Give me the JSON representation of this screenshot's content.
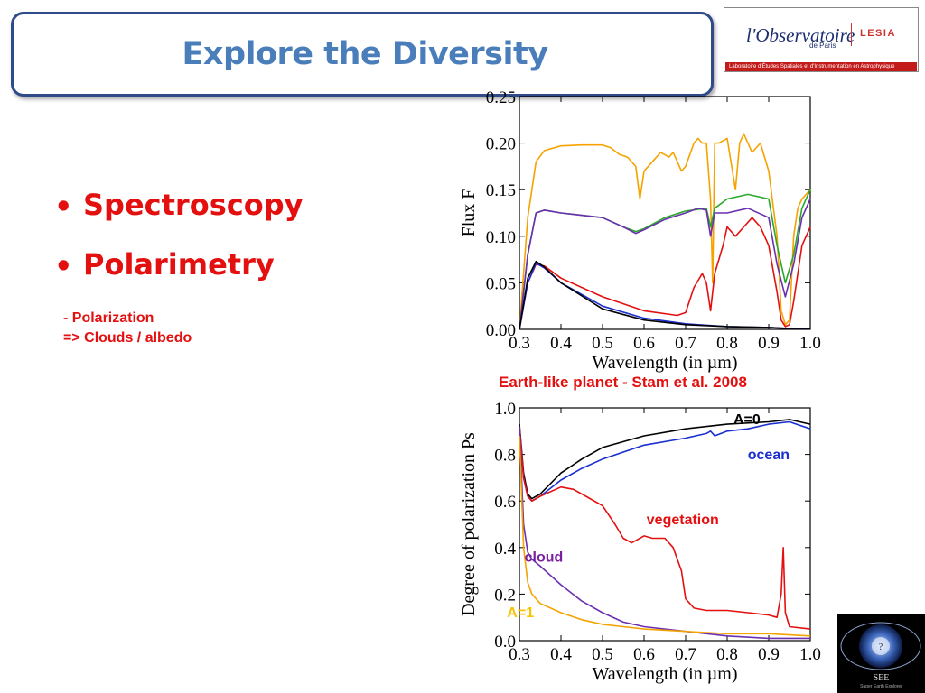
{
  "slide": {
    "title": "Explore the Diversity",
    "bullets": [
      "Spectroscopy",
      "Polarimetry"
    ],
    "note_lines": [
      "- Polarization",
      "=> Clouds / albedo"
    ],
    "caption": "Earth-like planet - Stam et al. 2008"
  },
  "logo": {
    "name_part1": "l'Observatoire",
    "name_part2": "de Paris",
    "lab": "LESIA",
    "band_text": "Laboratoire d'Études Spatiales et d'Instrumentation en Astrophysique"
  },
  "see_logo": {
    "text": "SEE",
    "subtext": "Super Earth Explorer",
    "mark": "?"
  },
  "colors": {
    "accent": "#4a7ebb",
    "title_border": "#2f4b8a",
    "red": "#e41010"
  },
  "chart_data": [
    {
      "type": "line",
      "xlabel": "Wavelength (in µm)",
      "ylabel": "Flux  F",
      "xlim": [
        0.3,
        1.0
      ],
      "ylim": [
        0.0,
        0.25
      ],
      "xticks": [
        "0.3",
        "0.4",
        "0.5",
        "0.6",
        "0.7",
        "0.8",
        "0.9",
        "1.0"
      ],
      "yticks": [
        "0.00",
        "0.05",
        "0.10",
        "0.15",
        "0.20",
        "0.25"
      ],
      "series": [
        {
          "color": "#f5a300",
          "x": [
            0.3,
            0.32,
            0.34,
            0.36,
            0.4,
            0.45,
            0.5,
            0.52,
            0.54,
            0.56,
            0.58,
            0.59,
            0.6,
            0.62,
            0.64,
            0.66,
            0.67,
            0.68,
            0.69,
            0.7,
            0.72,
            0.73,
            0.74,
            0.75,
            0.76,
            0.765,
            0.77,
            0.78,
            0.8,
            0.82,
            0.83,
            0.84,
            0.86,
            0.88,
            0.9,
            0.92,
            0.93,
            0.94,
            0.95,
            0.96,
            0.97,
            0.98,
            1.0
          ],
          "y": [
            0.0,
            0.12,
            0.18,
            0.192,
            0.197,
            0.198,
            0.198,
            0.195,
            0.188,
            0.185,
            0.175,
            0.14,
            0.17,
            0.18,
            0.19,
            0.185,
            0.19,
            0.18,
            0.17,
            0.175,
            0.2,
            0.205,
            0.2,
            0.2,
            0.14,
            0.05,
            0.2,
            0.2,
            0.205,
            0.15,
            0.2,
            0.21,
            0.19,
            0.2,
            0.17,
            0.1,
            0.02,
            0.005,
            0.01,
            0.1,
            0.13,
            0.14,
            0.15
          ]
        },
        {
          "color": "#2aa82a",
          "x": [
            0.3,
            0.32,
            0.34,
            0.36,
            0.4,
            0.5,
            0.55,
            0.58,
            0.6,
            0.65,
            0.7,
            0.75,
            0.76,
            0.77,
            0.8,
            0.85,
            0.9,
            0.92,
            0.94,
            0.96,
            0.98,
            1.0
          ],
          "y": [
            0.0,
            0.08,
            0.125,
            0.128,
            0.125,
            0.12,
            0.11,
            0.105,
            0.108,
            0.12,
            0.127,
            0.13,
            0.11,
            0.13,
            0.14,
            0.145,
            0.14,
            0.09,
            0.05,
            0.08,
            0.13,
            0.15
          ]
        },
        {
          "color": "#6a30b0",
          "x": [
            0.3,
            0.32,
            0.34,
            0.36,
            0.4,
            0.5,
            0.55,
            0.58,
            0.6,
            0.65,
            0.7,
            0.73,
            0.75,
            0.76,
            0.77,
            0.8,
            0.85,
            0.9,
            0.92,
            0.94,
            0.96,
            0.98,
            1.0
          ],
          "y": [
            0.0,
            0.08,
            0.125,
            0.128,
            0.125,
            0.12,
            0.11,
            0.103,
            0.107,
            0.118,
            0.125,
            0.13,
            0.128,
            0.1,
            0.125,
            0.125,
            0.13,
            0.12,
            0.07,
            0.035,
            0.07,
            0.12,
            0.14
          ]
        },
        {
          "color": "#e41010",
          "x": [
            0.3,
            0.32,
            0.34,
            0.36,
            0.4,
            0.5,
            0.6,
            0.68,
            0.7,
            0.72,
            0.74,
            0.75,
            0.76,
            0.77,
            0.79,
            0.8,
            0.82,
            0.84,
            0.86,
            0.88,
            0.9,
            0.92,
            0.93,
            0.94,
            0.95,
            0.96,
            0.98,
            1.0
          ],
          "y": [
            0.0,
            0.05,
            0.07,
            0.068,
            0.055,
            0.035,
            0.02,
            0.015,
            0.018,
            0.045,
            0.06,
            0.05,
            0.02,
            0.06,
            0.09,
            0.11,
            0.1,
            0.11,
            0.12,
            0.11,
            0.09,
            0.04,
            0.01,
            0.003,
            0.005,
            0.03,
            0.09,
            0.11
          ]
        },
        {
          "color": "#1a2fd0",
          "x": [
            0.3,
            0.32,
            0.34,
            0.36,
            0.4,
            0.5,
            0.6,
            0.7,
            0.8,
            0.9,
            0.95,
            1.0
          ],
          "y": [
            0.0,
            0.05,
            0.071,
            0.066,
            0.05,
            0.025,
            0.012,
            0.006,
            0.003,
            0.002,
            0.001,
            0.001
          ]
        },
        {
          "color": "#000000",
          "x": [
            0.3,
            0.32,
            0.34,
            0.36,
            0.4,
            0.5,
            0.6,
            0.7,
            0.8,
            0.9,
            0.95,
            1.0
          ],
          "y": [
            0.0,
            0.055,
            0.073,
            0.067,
            0.05,
            0.022,
            0.01,
            0.005,
            0.003,
            0.002,
            0.001,
            0.001
          ]
        }
      ]
    },
    {
      "type": "line",
      "xlabel": "Wavelength (in µm)",
      "ylabel": "Degree of polarization  Ps",
      "xlim": [
        0.3,
        1.0
      ],
      "ylim": [
        0.0,
        1.0
      ],
      "xticks": [
        "0.3",
        "0.4",
        "0.5",
        "0.6",
        "0.7",
        "0.8",
        "0.9",
        "1.0"
      ],
      "yticks": [
        "0.0",
        "0.2",
        "0.4",
        "0.6",
        "0.8",
        "1.0"
      ],
      "annotations": [
        {
          "text": "A=0",
          "color": "#000000",
          "x": 0.88,
          "y": 0.93
        },
        {
          "text": "ocean",
          "color": "#1a2fd0",
          "x": 0.95,
          "y": 0.78
        },
        {
          "text": "vegetation",
          "color": "#e41010",
          "x": 0.78,
          "y": 0.5
        },
        {
          "text": "cloud",
          "color": "#7a1fa0",
          "x": 0.405,
          "y": 0.34
        },
        {
          "text": "A=1",
          "color": "#f5c400",
          "x": 0.335,
          "y": 0.1
        }
      ],
      "series": [
        {
          "name": "A=0",
          "color": "#000000",
          "x": [
            0.3,
            0.31,
            0.32,
            0.33,
            0.35,
            0.4,
            0.45,
            0.5,
            0.6,
            0.7,
            0.8,
            0.9,
            0.95,
            1.0
          ],
          "y": [
            0.93,
            0.72,
            0.63,
            0.61,
            0.63,
            0.72,
            0.78,
            0.83,
            0.88,
            0.91,
            0.93,
            0.94,
            0.95,
            0.93
          ]
        },
        {
          "name": "ocean",
          "color": "#1a2fd0",
          "x": [
            0.3,
            0.31,
            0.32,
            0.33,
            0.35,
            0.4,
            0.45,
            0.5,
            0.6,
            0.7,
            0.75,
            0.76,
            0.77,
            0.8,
            0.85,
            0.9,
            0.95,
            1.0
          ],
          "y": [
            0.92,
            0.7,
            0.62,
            0.6,
            0.62,
            0.69,
            0.74,
            0.78,
            0.84,
            0.87,
            0.89,
            0.9,
            0.88,
            0.9,
            0.91,
            0.93,
            0.94,
            0.91
          ]
        },
        {
          "name": "vegetation",
          "color": "#e41010",
          "x": [
            0.3,
            0.31,
            0.32,
            0.33,
            0.35,
            0.4,
            0.43,
            0.46,
            0.5,
            0.53,
            0.55,
            0.57,
            0.6,
            0.62,
            0.65,
            0.67,
            0.69,
            0.7,
            0.72,
            0.75,
            0.8,
            0.85,
            0.9,
            0.92,
            0.93,
            0.935,
            0.94,
            0.95,
            1.0
          ],
          "y": [
            0.92,
            0.7,
            0.62,
            0.6,
            0.62,
            0.66,
            0.65,
            0.62,
            0.58,
            0.5,
            0.44,
            0.42,
            0.45,
            0.44,
            0.44,
            0.4,
            0.3,
            0.18,
            0.14,
            0.13,
            0.13,
            0.12,
            0.11,
            0.1,
            0.2,
            0.4,
            0.12,
            0.06,
            0.05
          ]
        },
        {
          "name": "cloud",
          "color": "#6a30b0",
          "x": [
            0.3,
            0.31,
            0.32,
            0.33,
            0.35,
            0.4,
            0.45,
            0.5,
            0.55,
            0.6,
            0.7,
            0.8,
            0.9,
            1.0
          ],
          "y": [
            0.92,
            0.5,
            0.38,
            0.35,
            0.32,
            0.24,
            0.17,
            0.12,
            0.08,
            0.06,
            0.04,
            0.02,
            0.01,
            0.01
          ]
        },
        {
          "name": "A=1",
          "color": "#f5a300",
          "x": [
            0.3,
            0.31,
            0.32,
            0.33,
            0.35,
            0.4,
            0.45,
            0.5,
            0.55,
            0.6,
            0.7,
            0.8,
            0.9,
            1.0
          ],
          "y": [
            0.88,
            0.4,
            0.25,
            0.2,
            0.16,
            0.12,
            0.09,
            0.07,
            0.06,
            0.05,
            0.04,
            0.03,
            0.03,
            0.02
          ]
        }
      ]
    }
  ]
}
